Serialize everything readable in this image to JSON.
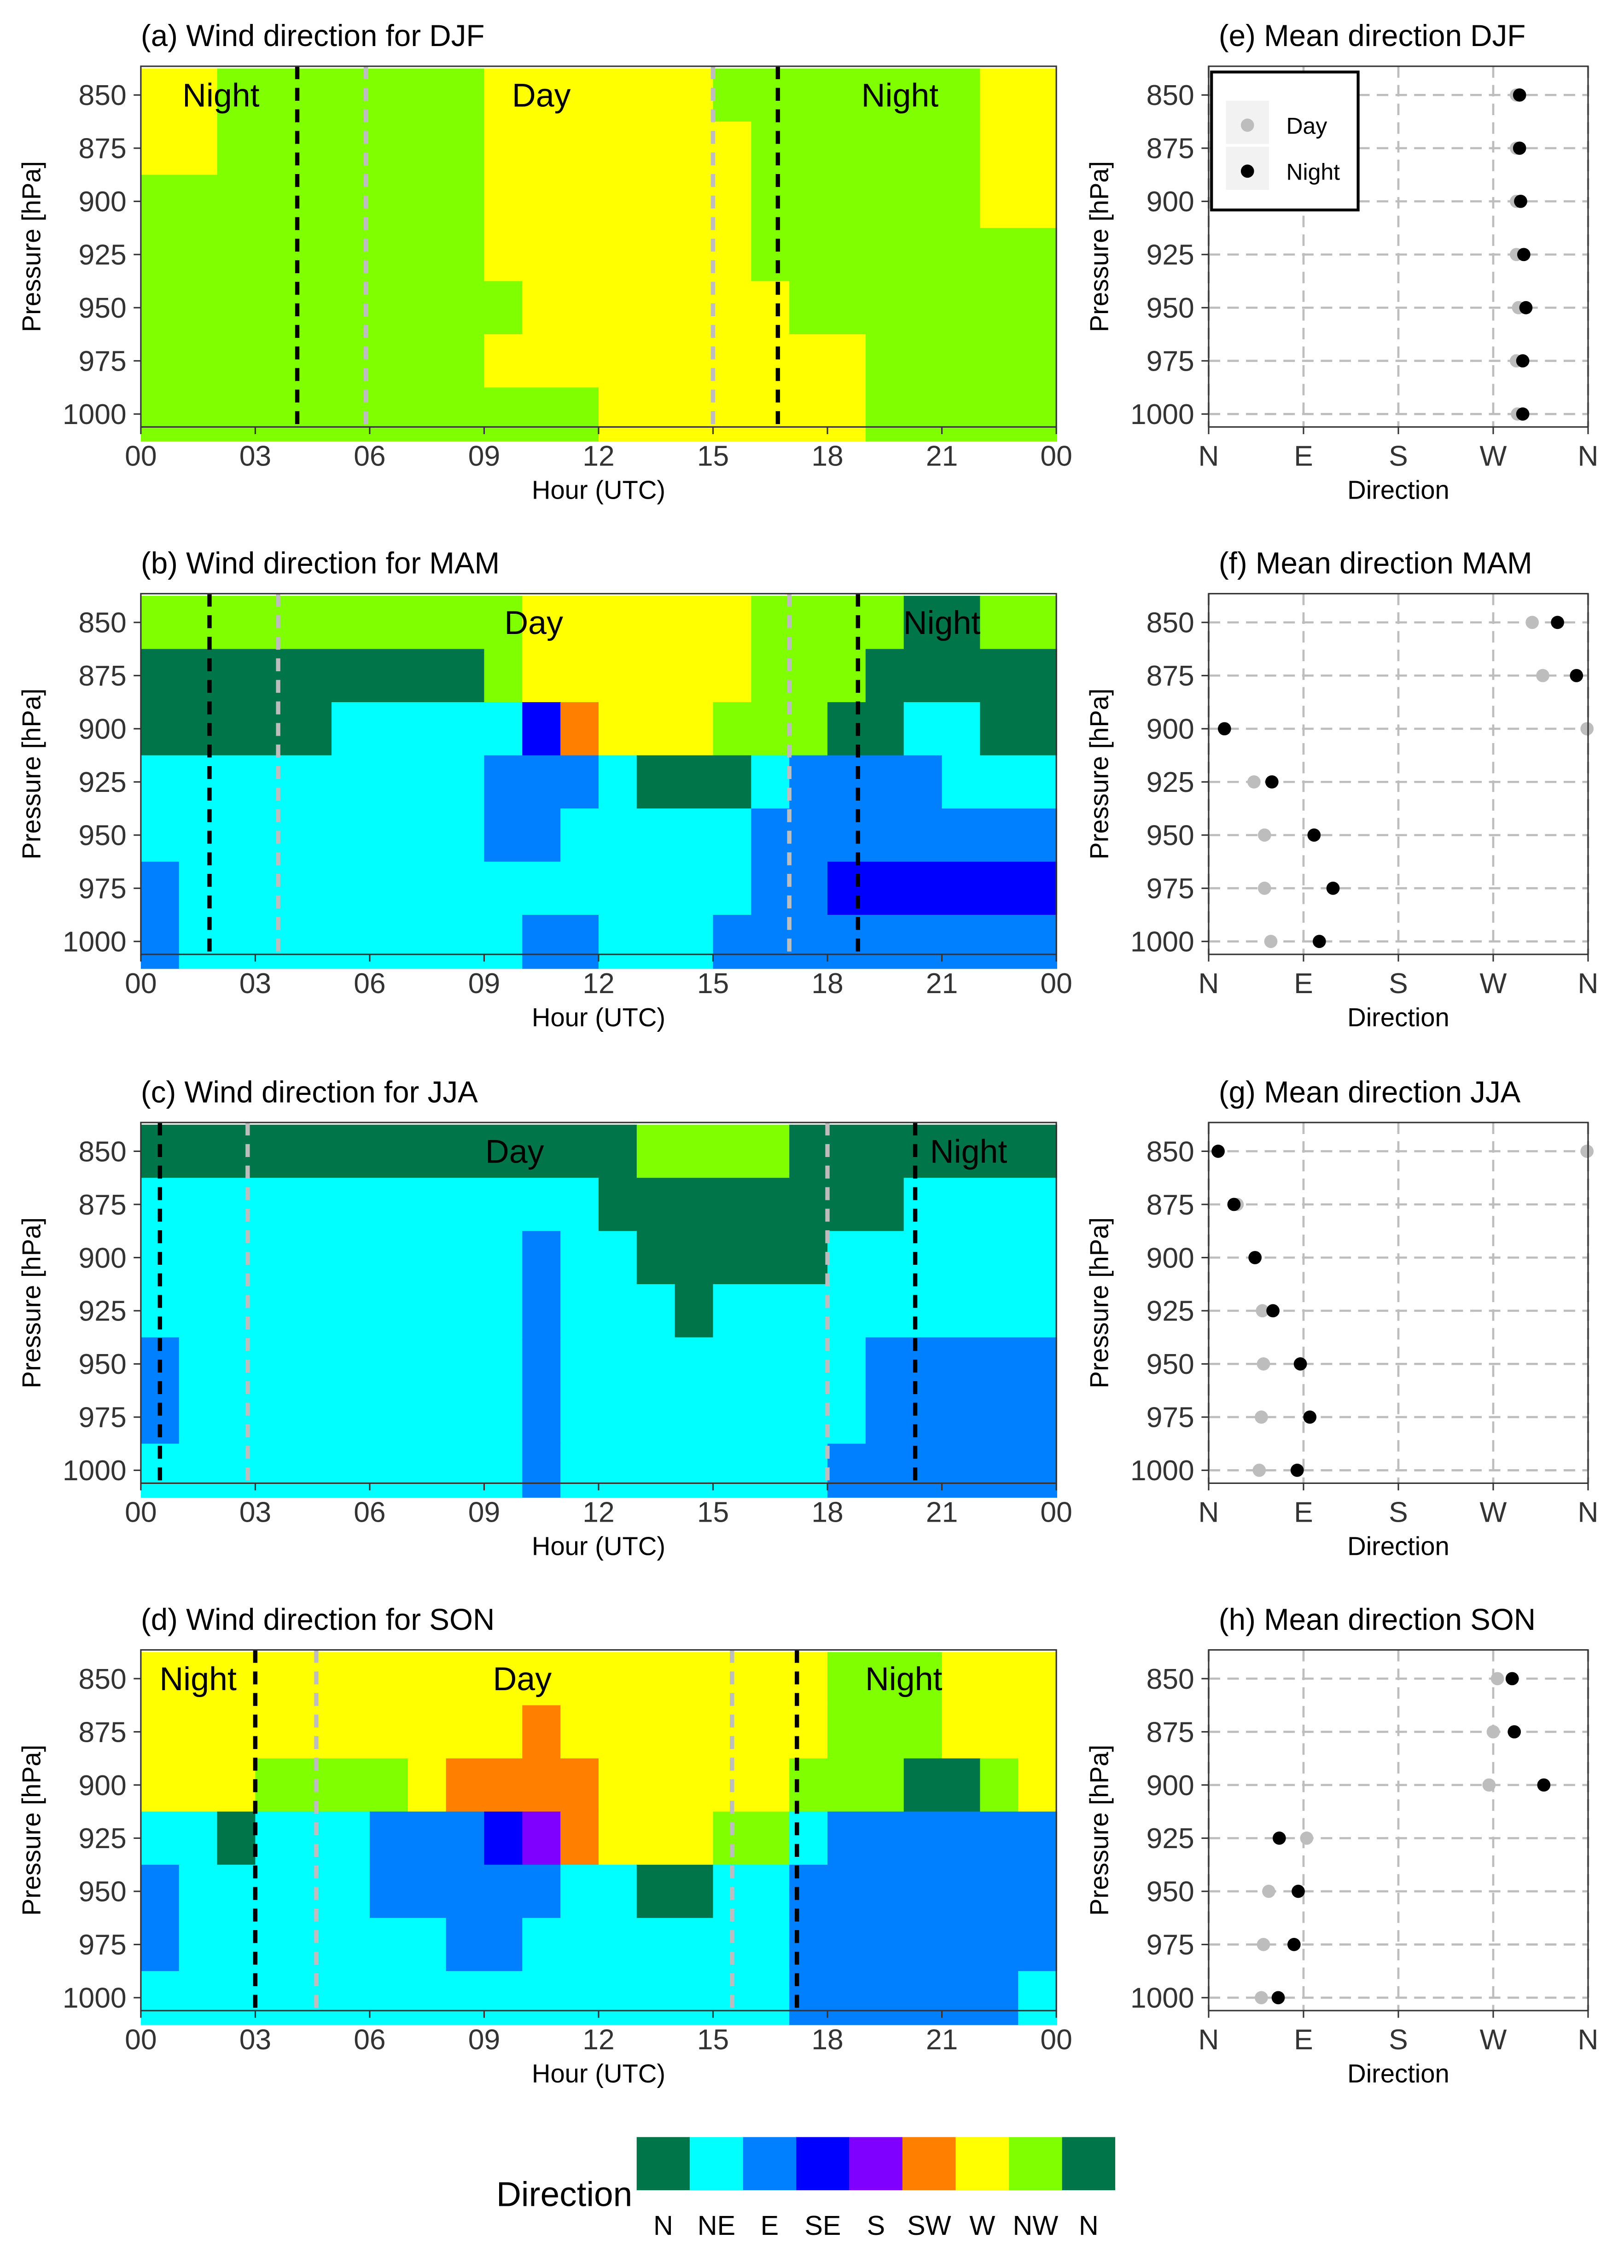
{
  "figure": {
    "colors": {
      "N": "#00754A",
      "NE": "#00FFFF",
      "E": "#0080FF",
      "SE": "#0000FF",
      "S": "#8000FF",
      "SW": "#FF8000",
      "W": "#FFFF00",
      "NW": "#80FF00",
      "N2": "#00754A",
      "day_line": "#bdbdbd",
      "night_line": "#000000",
      "grid": "#bdbdbd"
    },
    "pressure_ticks": [
      "850",
      "875",
      "900",
      "925",
      "950",
      "975",
      "1000"
    ],
    "hour_ticks": [
      "00",
      "03",
      "06",
      "09",
      "12",
      "15",
      "18",
      "21",
      "00"
    ],
    "direction_ticks": [
      "N",
      "E",
      "S",
      "W",
      "N"
    ],
    "ylabel": "Pressure [hPa]",
    "hour_xlabel": "Hour (UTC)",
    "direction_xlabel": "Direction"
  },
  "legend": {
    "title": "Direction",
    "labels": [
      "N",
      "NE",
      "E",
      "SE",
      "S",
      "SW",
      "W",
      "NW",
      "N"
    ],
    "keys": [
      "N",
      "NE",
      "E",
      "SE",
      "S",
      "SW",
      "W",
      "NW",
      "N2"
    ]
  },
  "mean_legend": {
    "day": "Day",
    "night": "Night"
  },
  "chart_data": [
    {
      "type": "heatmap",
      "title": "(a) Wind direction for DJF",
      "xlabel": "Hour (UTC)",
      "ylabel": "Pressure [hPa]",
      "xlim": [
        0,
        24
      ],
      "y": [
        850,
        875,
        900,
        925,
        950,
        975,
        1000
      ],
      "segments": [
        [
          [
            0,
            2,
            "W"
          ],
          [
            2,
            9,
            "NW"
          ],
          [
            9,
            15,
            "W"
          ],
          [
            15,
            16,
            "NW"
          ],
          [
            16,
            22,
            "NW"
          ],
          [
            22,
            24,
            "W"
          ]
        ],
        [
          [
            0,
            2,
            "W"
          ],
          [
            2,
            9,
            "NW"
          ],
          [
            9,
            16,
            "W"
          ],
          [
            16,
            22,
            "NW"
          ],
          [
            22,
            24,
            "W"
          ]
        ],
        [
          [
            0,
            9,
            "NW"
          ],
          [
            9,
            16,
            "W"
          ],
          [
            16,
            22,
            "NW"
          ],
          [
            22,
            24,
            "W"
          ]
        ],
        [
          [
            0,
            9,
            "NW"
          ],
          [
            9,
            16,
            "W"
          ],
          [
            16,
            17,
            "NW"
          ],
          [
            17,
            24,
            "NW"
          ]
        ],
        [
          [
            0,
            10,
            "NW"
          ],
          [
            10,
            16,
            "W"
          ],
          [
            16,
            17,
            "W"
          ],
          [
            17,
            24,
            "NW"
          ]
        ],
        [
          [
            0,
            9,
            "NW"
          ],
          [
            9,
            19,
            "W"
          ],
          [
            19,
            24,
            "NW"
          ]
        ],
        [
          [
            0,
            12,
            "NW"
          ],
          [
            12,
            19,
            "W"
          ],
          [
            19,
            24,
            "NW"
          ]
        ]
      ],
      "day_lines": [
        5.9,
        15.0
      ],
      "night_lines": [
        4.1,
        16.7
      ],
      "annotations": [
        {
          "text": "Night",
          "x": 2.1
        },
        {
          "text": "Day",
          "x": 10.5
        },
        {
          "text": "Night",
          "x": 19.9
        }
      ]
    },
    {
      "type": "heatmap",
      "title": "(b) Wind direction for MAM",
      "xlabel": "Hour (UTC)",
      "ylabel": "Pressure [hPa]",
      "xlim": [
        0,
        24
      ],
      "y": [
        850,
        875,
        900,
        925,
        950,
        975,
        1000
      ],
      "segments": [
        [
          [
            0,
            10,
            "NW"
          ],
          [
            10,
            16,
            "W"
          ],
          [
            16,
            20,
            "NW"
          ],
          [
            20,
            22,
            "N"
          ],
          [
            22,
            24,
            "NW"
          ]
        ],
        [
          [
            0,
            9,
            "N"
          ],
          [
            9,
            10,
            "NW"
          ],
          [
            10,
            16,
            "W"
          ],
          [
            16,
            19,
            "NW"
          ],
          [
            19,
            24,
            "N"
          ]
        ],
        [
          [
            0,
            5,
            "N"
          ],
          [
            5,
            10,
            "NE"
          ],
          [
            10,
            11,
            "SE"
          ],
          [
            11,
            12,
            "SW"
          ],
          [
            12,
            15,
            "W"
          ],
          [
            15,
            18,
            "NW"
          ],
          [
            18,
            20,
            "N"
          ],
          [
            20,
            22,
            "NE"
          ],
          [
            22,
            24,
            "N"
          ]
        ],
        [
          [
            0,
            9,
            "NE"
          ],
          [
            9,
            12,
            "E"
          ],
          [
            12,
            13,
            "NE"
          ],
          [
            13,
            16,
            "N"
          ],
          [
            16,
            17,
            "NE"
          ],
          [
            17,
            21,
            "E"
          ],
          [
            21,
            24,
            "NE"
          ]
        ],
        [
          [
            0,
            9,
            "NE"
          ],
          [
            9,
            11,
            "E"
          ],
          [
            11,
            16,
            "NE"
          ],
          [
            16,
            24,
            "E"
          ]
        ],
        [
          [
            0,
            1,
            "E"
          ],
          [
            1,
            16,
            "NE"
          ],
          [
            16,
            18,
            "E"
          ],
          [
            18,
            24,
            "SE"
          ]
        ],
        [
          [
            0,
            1,
            "E"
          ],
          [
            1,
            10,
            "NE"
          ],
          [
            10,
            12,
            "E"
          ],
          [
            12,
            15,
            "NE"
          ],
          [
            15,
            24,
            "E"
          ]
        ]
      ],
      "day_lines": [
        3.6,
        17.0
      ],
      "night_lines": [
        1.8,
        18.8
      ],
      "annotations": [
        {
          "text": "Day",
          "x": 10.3
        },
        {
          "text": "Night",
          "x": 21.0
        }
      ]
    },
    {
      "type": "heatmap",
      "title": "(c) Wind direction for JJA",
      "xlabel": "Hour (UTC)",
      "ylabel": "Pressure [hPa]",
      "xlim": [
        0,
        24
      ],
      "y": [
        850,
        875,
        900,
        925,
        950,
        975,
        1000
      ],
      "segments": [
        [
          [
            0,
            13,
            "N"
          ],
          [
            13,
            17,
            "NW"
          ],
          [
            17,
            24,
            "N"
          ]
        ],
        [
          [
            0,
            12,
            "NE"
          ],
          [
            12,
            20,
            "N"
          ],
          [
            20,
            24,
            "NE"
          ]
        ],
        [
          [
            0,
            10,
            "NE"
          ],
          [
            10,
            11,
            "E"
          ],
          [
            11,
            13,
            "NE"
          ],
          [
            13,
            18,
            "N"
          ],
          [
            18,
            24,
            "NE"
          ]
        ],
        [
          [
            0,
            10,
            "NE"
          ],
          [
            10,
            11,
            "E"
          ],
          [
            11,
            14,
            "NE"
          ],
          [
            14,
            15,
            "N"
          ],
          [
            15,
            24,
            "NE"
          ]
        ],
        [
          [
            0,
            1,
            "E"
          ],
          [
            1,
            10,
            "NE"
          ],
          [
            10,
            11,
            "E"
          ],
          [
            11,
            19,
            "NE"
          ],
          [
            19,
            24,
            "E"
          ]
        ],
        [
          [
            0,
            1,
            "E"
          ],
          [
            1,
            10,
            "NE"
          ],
          [
            10,
            11,
            "E"
          ],
          [
            11,
            19,
            "NE"
          ],
          [
            19,
            24,
            "E"
          ]
        ],
        [
          [
            0,
            10,
            "NE"
          ],
          [
            10,
            11,
            "E"
          ],
          [
            11,
            18,
            "NE"
          ],
          [
            18,
            24,
            "E"
          ]
        ]
      ],
      "day_lines": [
        2.8,
        18.0
      ],
      "night_lines": [
        0.5,
        20.3
      ],
      "annotations": [
        {
          "text": "Day",
          "x": 9.8
        },
        {
          "text": "Night",
          "x": 21.7
        }
      ]
    },
    {
      "type": "heatmap",
      "title": "(d) Wind direction for SON",
      "xlabel": "Hour (UTC)",
      "ylabel": "Pressure [hPa]",
      "xlim": [
        0,
        24
      ],
      "y": [
        850,
        875,
        900,
        925,
        950,
        975,
        1000
      ],
      "segments": [
        [
          [
            0,
            18,
            "W"
          ],
          [
            18,
            21,
            "NW"
          ],
          [
            21,
            24,
            "W"
          ]
        ],
        [
          [
            0,
            10,
            "W"
          ],
          [
            10,
            11,
            "SW"
          ],
          [
            11,
            18,
            "W"
          ],
          [
            18,
            21,
            "NW"
          ],
          [
            21,
            24,
            "W"
          ]
        ],
        [
          [
            0,
            3,
            "W"
          ],
          [
            3,
            7,
            "NW"
          ],
          [
            7,
            8,
            "W"
          ],
          [
            8,
            12,
            "SW"
          ],
          [
            12,
            17,
            "W"
          ],
          [
            17,
            20,
            "NW"
          ],
          [
            20,
            22,
            "N"
          ],
          [
            22,
            23,
            "NW"
          ],
          [
            23,
            24,
            "W"
          ]
        ],
        [
          [
            0,
            2,
            "NE"
          ],
          [
            2,
            3,
            "N"
          ],
          [
            3,
            6,
            "NE"
          ],
          [
            6,
            9,
            "E"
          ],
          [
            9,
            10,
            "SE"
          ],
          [
            10,
            11,
            "S"
          ],
          [
            11,
            12,
            "SW"
          ],
          [
            12,
            15,
            "W"
          ],
          [
            15,
            17,
            "NW"
          ],
          [
            17,
            18,
            "NE"
          ],
          [
            18,
            24,
            "E"
          ]
        ],
        [
          [
            0,
            1,
            "E"
          ],
          [
            1,
            6,
            "NE"
          ],
          [
            6,
            11,
            "E"
          ],
          [
            11,
            13,
            "NE"
          ],
          [
            13,
            15,
            "N"
          ],
          [
            15,
            17,
            "NE"
          ],
          [
            17,
            24,
            "E"
          ]
        ],
        [
          [
            0,
            1,
            "E"
          ],
          [
            1,
            8,
            "NE"
          ],
          [
            8,
            10,
            "E"
          ],
          [
            10,
            17,
            "NE"
          ],
          [
            17,
            24,
            "E"
          ]
        ],
        [
          [
            0,
            17,
            "NE"
          ],
          [
            17,
            23,
            "E"
          ],
          [
            23,
            24,
            "NE"
          ]
        ]
      ],
      "day_lines": [
        4.6,
        15.5
      ],
      "night_lines": [
        3.0,
        17.2
      ],
      "annotations": [
        {
          "text": "Night",
          "x": 1.5
        },
        {
          "text": "Day",
          "x": 10.0
        },
        {
          "text": "Night",
          "x": 20.0
        }
      ]
    },
    {
      "type": "scatter",
      "title": "(e) Mean direction DJF",
      "xlabel": "Direction",
      "ylabel": "Pressure [hPa]",
      "xlim": [
        0,
        360
      ],
      "x_ticks": [
        0,
        90,
        180,
        270,
        360
      ],
      "y": [
        850,
        875,
        900,
        925,
        950,
        975,
        1000
      ],
      "day": [
        292,
        292,
        292,
        292,
        294,
        292,
        293
      ],
      "night": [
        295,
        295,
        296,
        299,
        301,
        298,
        298
      ],
      "legend": true
    },
    {
      "type": "scatter",
      "title": "(f) Mean direction MAM",
      "xlabel": "Direction",
      "ylabel": "Pressure [hPa]",
      "xlim": [
        0,
        360
      ],
      "x_ticks": [
        0,
        90,
        180,
        270,
        360
      ],
      "y": [
        850,
        875,
        900,
        925,
        950,
        975,
        1000
      ],
      "day": [
        307,
        317,
        359,
        43,
        53,
        53,
        59
      ],
      "night": [
        331,
        349,
        15,
        60,
        100,
        118,
        105
      ]
    },
    {
      "type": "scatter",
      "title": "(g) Mean direction JJA",
      "xlabel": "Direction",
      "ylabel": "Pressure [hPa]",
      "xlim": [
        0,
        360
      ],
      "x_ticks": [
        0,
        90,
        180,
        270,
        360
      ],
      "y": [
        850,
        875,
        900,
        925,
        950,
        975,
        1000
      ],
      "day": [
        359,
        27,
        44,
        51,
        52,
        50,
        48
      ],
      "night": [
        9,
        24,
        44,
        61,
        87,
        96,
        84
      ]
    },
    {
      "type": "scatter",
      "title": "(h) Mean direction SON",
      "xlabel": "Direction",
      "ylabel": "Pressure [hPa]",
      "xlim": [
        0,
        360
      ],
      "x_ticks": [
        0,
        90,
        180,
        270,
        360
      ],
      "y": [
        850,
        875,
        900,
        925,
        950,
        975,
        1000
      ],
      "day": [
        274,
        270,
        266,
        93,
        57,
        52,
        50
      ],
      "night": [
        288,
        290,
        318,
        67,
        85,
        81,
        66
      ]
    }
  ]
}
